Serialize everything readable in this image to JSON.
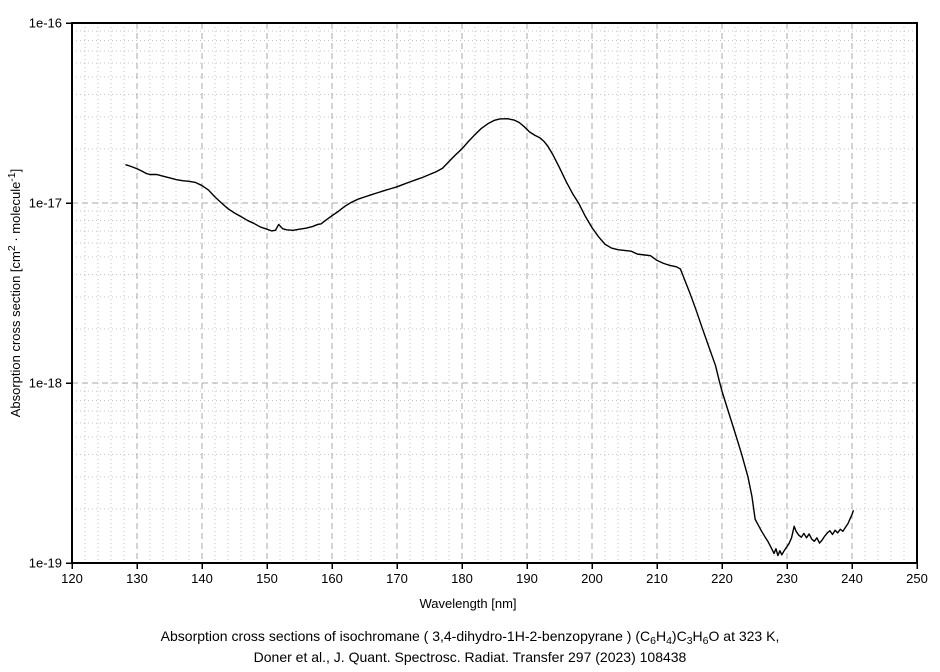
{
  "page": {
    "background": "#ffffff"
  },
  "chart_data": {
    "type": "line",
    "title": "",
    "xlabel": "Wavelength [nm]",
    "ylabel_segments": [
      {
        "t": "Absorption cross section [cm"
      },
      {
        "t": "2",
        "sup": true
      },
      {
        "t": " · molecule"
      },
      {
        "t": "-1",
        "sup": true
      },
      {
        "t": "]"
      }
    ],
    "x_axis": {
      "min": 120,
      "max": 250,
      "major_tick_step": 10,
      "minor_tick_step": 2,
      "ticks": [
        120,
        130,
        140,
        150,
        160,
        170,
        180,
        190,
        200,
        210,
        220,
        230,
        240,
        250
      ],
      "tick_labels": [
        "120",
        "130",
        "140",
        "150",
        "160",
        "170",
        "180",
        "190",
        "200",
        "210",
        "220",
        "230",
        "240",
        "250"
      ]
    },
    "y_axis": {
      "scale": "log",
      "min": 1e-19,
      "max": 1e-16,
      "ticks": [
        1e-16,
        1e-17,
        1e-18,
        1e-19
      ],
      "tick_labels": [
        "1e-16",
        "1e-17",
        "1e-18",
        "1e-19"
      ]
    },
    "grid": {
      "major_color": "#a9a9a9",
      "minor_color": "#c4c4c4",
      "major_style": "dashed",
      "minor_style": "dotted",
      "legend": "none"
    },
    "line_color": "#000000",
    "series": [
      {
        "name": "isochromane absorption cross section at 323 K",
        "points": [
          [
            128.3,
            1.63e-17
          ],
          [
            129,
            1.6e-17
          ],
          [
            130,
            1.55e-17
          ],
          [
            130.8,
            1.5e-17
          ],
          [
            131.4,
            1.46e-17
          ],
          [
            132,
            1.44e-17
          ],
          [
            133,
            1.44e-17
          ],
          [
            134,
            1.41e-17
          ],
          [
            135,
            1.38e-17
          ],
          [
            136,
            1.35e-17
          ],
          [
            137,
            1.33e-17
          ],
          [
            138,
            1.32e-17
          ],
          [
            139,
            1.3e-17
          ],
          [
            140,
            1.25e-17
          ],
          [
            141,
            1.18e-17
          ],
          [
            142,
            1.08e-17
          ],
          [
            143,
            1e-17
          ],
          [
            144,
            9.3e-18
          ],
          [
            145,
            8.8e-18
          ],
          [
            146,
            8.4e-18
          ],
          [
            147,
            8e-18
          ],
          [
            148,
            7.7e-18
          ],
          [
            149,
            7.35e-18
          ],
          [
            150,
            7.15e-18
          ],
          [
            150.7,
            7e-18
          ],
          [
            151.3,
            7.05e-18
          ],
          [
            151.8,
            7.6e-18
          ],
          [
            152.4,
            7.2e-18
          ],
          [
            153,
            7.1e-18
          ],
          [
            154,
            7.05e-18
          ],
          [
            155,
            7.15e-18
          ],
          [
            156,
            7.25e-18
          ],
          [
            157,
            7.4e-18
          ],
          [
            157.8,
            7.6e-18
          ],
          [
            158.3,
            7.65e-18
          ],
          [
            159,
            8e-18
          ],
          [
            160,
            8.5e-18
          ],
          [
            161,
            9e-18
          ],
          [
            162,
            9.6e-18
          ],
          [
            163,
            1.01e-17
          ],
          [
            164,
            1.05e-17
          ],
          [
            165,
            1.08e-17
          ],
          [
            166,
            1.11e-17
          ],
          [
            167,
            1.14e-17
          ],
          [
            168,
            1.17e-17
          ],
          [
            169,
            1.2e-17
          ],
          [
            170,
            1.23e-17
          ],
          [
            171,
            1.27e-17
          ],
          [
            172,
            1.31e-17
          ],
          [
            173,
            1.35e-17
          ],
          [
            174,
            1.39e-17
          ],
          [
            175,
            1.44e-17
          ],
          [
            176,
            1.49e-17
          ],
          [
            177,
            1.56e-17
          ],
          [
            178,
            1.7e-17
          ],
          [
            179,
            1.85e-17
          ],
          [
            180,
            2e-17
          ],
          [
            181,
            2.2e-17
          ],
          [
            182,
            2.4e-17
          ],
          [
            183,
            2.6e-17
          ],
          [
            184,
            2.76e-17
          ],
          [
            185,
            2.88e-17
          ],
          [
            185.8,
            2.93e-17
          ],
          [
            187,
            2.94e-17
          ],
          [
            188,
            2.89e-17
          ],
          [
            188.8,
            2.8e-17
          ],
          [
            189.6,
            2.65e-17
          ],
          [
            190.4,
            2.48e-17
          ],
          [
            191.2,
            2.38e-17
          ],
          [
            192,
            2.3e-17
          ],
          [
            192.6,
            2.2e-17
          ],
          [
            193.2,
            2.07e-17
          ],
          [
            194,
            1.85e-17
          ],
          [
            195,
            1.57e-17
          ],
          [
            196,
            1.32e-17
          ],
          [
            197,
            1.13e-17
          ],
          [
            198,
            9.9e-18
          ],
          [
            199,
            8.4e-18
          ],
          [
            200,
            7.3e-18
          ],
          [
            201,
            6.5e-18
          ],
          [
            202,
            5.9e-18
          ],
          [
            203,
            5.62e-18
          ],
          [
            204,
            5.5e-18
          ],
          [
            205,
            5.45e-18
          ],
          [
            206,
            5.4e-18
          ],
          [
            207,
            5.2e-18
          ],
          [
            208,
            5.15e-18
          ],
          [
            209,
            5.1e-18
          ],
          [
            210,
            4.8e-18
          ],
          [
            211,
            4.62e-18
          ],
          [
            212,
            4.5e-18
          ],
          [
            213,
            4.42e-18
          ],
          [
            213.6,
            4.3e-18
          ],
          [
            214,
            3.95e-18
          ],
          [
            215,
            3.2e-18
          ],
          [
            216,
            2.55e-18
          ],
          [
            217,
            2e-18
          ],
          [
            218,
            1.58e-18
          ],
          [
            219,
            1.25e-18
          ],
          [
            219.6,
            1.02e-18
          ],
          [
            220,
            9e-19
          ],
          [
            221,
            6.9e-19
          ],
          [
            222,
            5.3e-19
          ],
          [
            223,
            4.05e-19
          ],
          [
            224,
            3e-19
          ],
          [
            224.6,
            2.35e-19
          ],
          [
            225.1,
            1.75e-19
          ],
          [
            225.6,
            1.62e-19
          ],
          [
            226.1,
            1.5e-19
          ],
          [
            226.6,
            1.4e-19
          ],
          [
            227,
            1.33e-19
          ],
          [
            227.4,
            1.25e-19
          ],
          [
            227.7,
            1.19e-19
          ],
          [
            228,
            1.13e-19
          ],
          [
            228.3,
            1.2e-19
          ],
          [
            228.6,
            1.1e-19
          ],
          [
            228.9,
            1.17e-19
          ],
          [
            229.2,
            1.11e-19
          ],
          [
            229.5,
            1.16e-19
          ],
          [
            229.9,
            1.22e-19
          ],
          [
            230.3,
            1.28e-19
          ],
          [
            230.7,
            1.38e-19
          ],
          [
            231.1,
            1.6e-19
          ],
          [
            231.4,
            1.5e-19
          ],
          [
            231.8,
            1.43e-19
          ],
          [
            232.2,
            1.39e-19
          ],
          [
            232.6,
            1.46e-19
          ],
          [
            233,
            1.38e-19
          ],
          [
            233.4,
            1.45e-19
          ],
          [
            233.8,
            1.36e-19
          ],
          [
            234.2,
            1.32e-19
          ],
          [
            234.6,
            1.38e-19
          ],
          [
            235,
            1.29e-19
          ],
          [
            235.4,
            1.34e-19
          ],
          [
            235.8,
            1.41e-19
          ],
          [
            236.2,
            1.47e-19
          ],
          [
            236.6,
            1.51e-19
          ],
          [
            237,
            1.44e-19
          ],
          [
            237.4,
            1.52e-19
          ],
          [
            237.8,
            1.47e-19
          ],
          [
            238.2,
            1.54e-19
          ],
          [
            238.6,
            1.5e-19
          ],
          [
            239,
            1.58e-19
          ],
          [
            239.4,
            1.66e-19
          ],
          [
            239.7,
            1.76e-19
          ],
          [
            240,
            1.86e-19
          ],
          [
            240.2,
            1.95e-19
          ]
        ]
      }
    ]
  },
  "caption": {
    "line1_segments": [
      {
        "t": "Absorption cross sections of isochromane ( 3,4-dihydro-1H-2-benzopyrane ) (C"
      },
      {
        "t": "6",
        "sub": true
      },
      {
        "t": "H"
      },
      {
        "t": "4",
        "sub": true
      },
      {
        "t": ")C"
      },
      {
        "t": "3",
        "sub": true
      },
      {
        "t": "H"
      },
      {
        "t": "6",
        "sub": true
      },
      {
        "t": "O at 323 K,"
      }
    ],
    "line2": "Doner et al., J. Quant. Spectrosc. Radiat. Transfer 297 (2023) 108438"
  }
}
